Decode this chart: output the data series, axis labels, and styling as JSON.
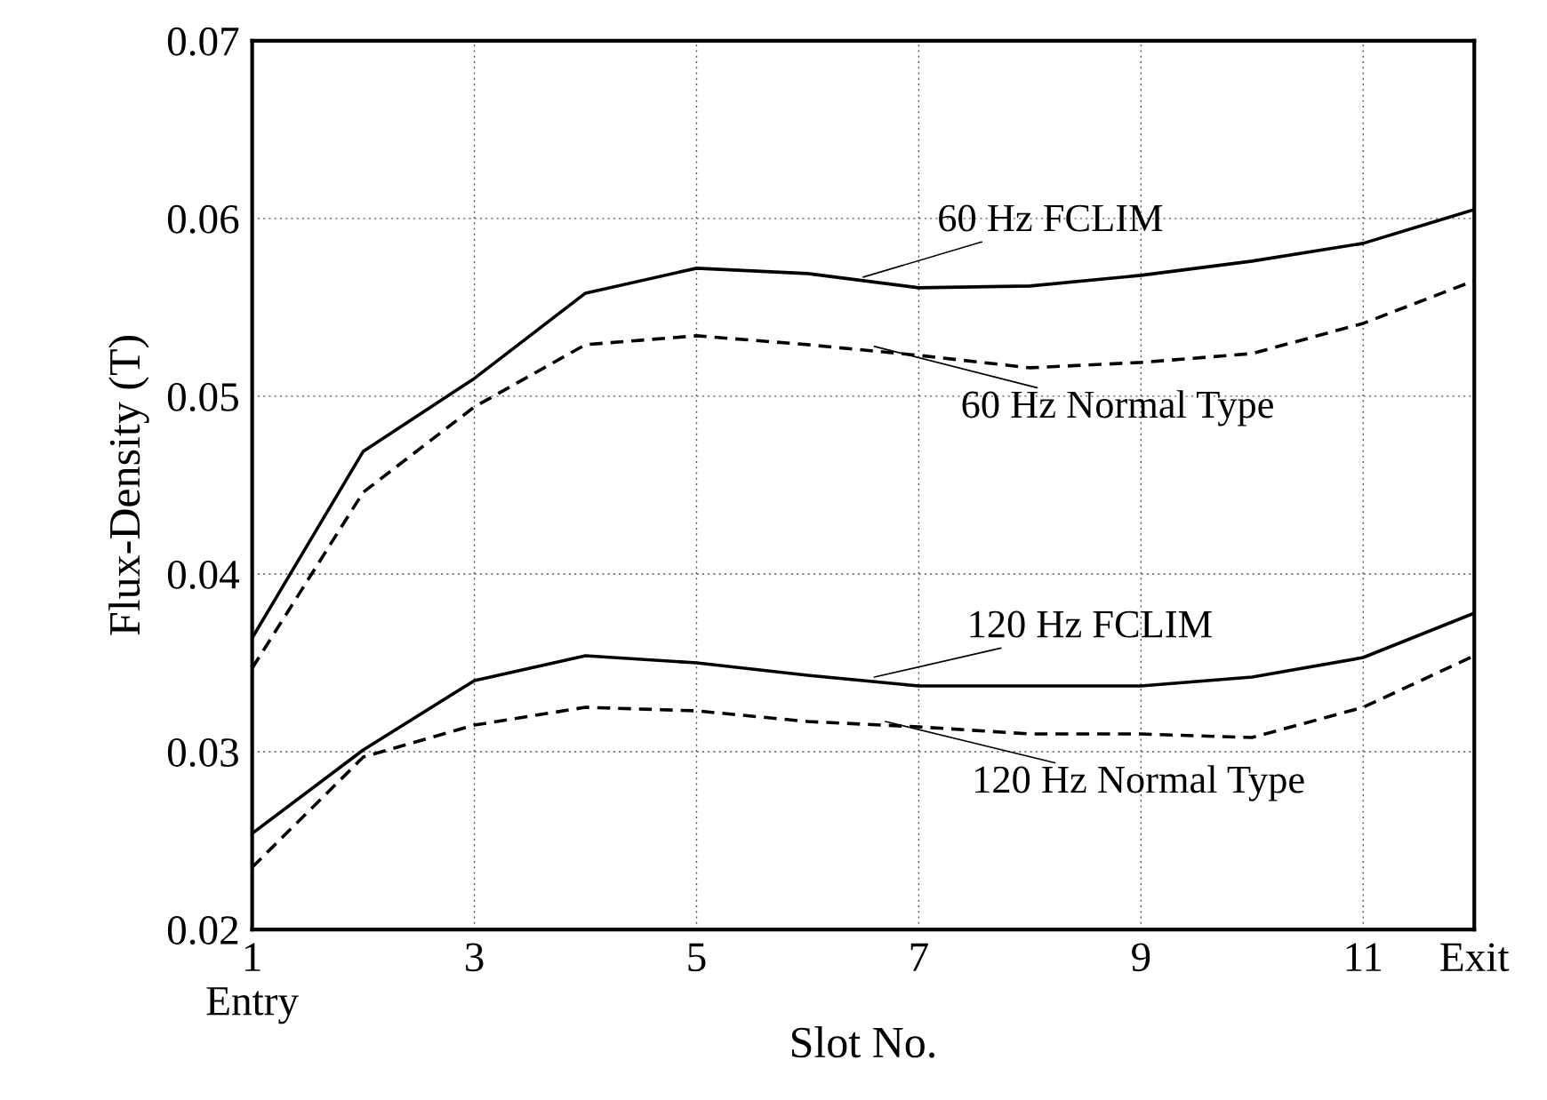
{
  "chart_data": {
    "type": "line",
    "xlabel": "Slot No.",
    "ylabel": "Flux-Density (T)",
    "x": [
      1,
      2,
      3,
      4,
      5,
      6,
      7,
      8,
      9,
      10,
      11,
      12
    ],
    "xlim": [
      1,
      12
    ],
    "xticks": [
      {
        "value": 1,
        "label": "1\nEntry"
      },
      3,
      5,
      7,
      9,
      11,
      {
        "value": 12,
        "label": "Exit"
      }
    ],
    "ylim": [
      0.02,
      0.07
    ],
    "yticks": [
      0.02,
      0.03,
      0.04,
      0.05,
      0.06,
      0.07
    ],
    "grid": true,
    "legend": false,
    "series": [
      {
        "color": "#000000",
        "line_style": "solid",
        "values": [
          0.0364,
          0.0469,
          0.051,
          0.0558,
          0.0572,
          0.0569,
          0.0561,
          0.0562,
          0.0568,
          0.0576,
          0.0586,
          0.0605
        ]
      },
      {
        "color": "#000000",
        "line_style": "dashed",
        "values": [
          0.0347,
          0.0446,
          0.0494,
          0.0529,
          0.0534,
          0.0529,
          0.0523,
          0.0516,
          0.0519,
          0.0524,
          0.0541,
          0.0565
        ]
      },
      {
        "color": "#000000",
        "line_style": "solid",
        "values": [
          0.0254,
          0.0301,
          0.034,
          0.0354,
          0.035,
          0.0343,
          0.0337,
          0.0337,
          0.0337,
          0.0342,
          0.0353,
          0.0378
        ]
      },
      {
        "color": "#000000",
        "line_style": "dashed",
        "values": [
          0.0235,
          0.0297,
          0.0315,
          0.0325,
          0.0323,
          0.0317,
          0.0314,
          0.031,
          0.031,
          0.0308,
          0.0325,
          0.0354
        ]
      }
    ],
    "annotations": [
      {
        "text": "60 Hz FCLIM",
        "x": 6.5,
        "y": 0.0567
      },
      {
        "text": "60 Hz Normal Type",
        "x": 6.6,
        "y": 0.0528
      },
      {
        "text": "120 Hz FCLIM",
        "x": 6.6,
        "y": 0.0342
      },
      {
        "text": "120 Hz Normal Type",
        "x": 6.7,
        "y": 0.0317
      }
    ]
  }
}
